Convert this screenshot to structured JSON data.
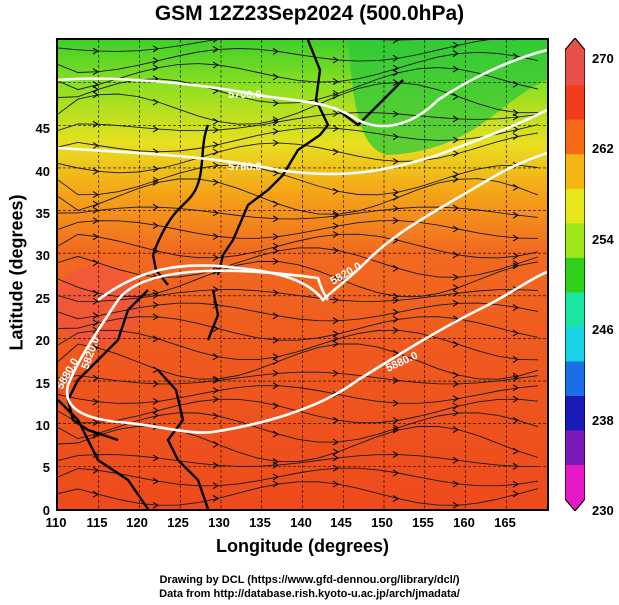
{
  "title": "GSM 12Z23Sep2024 (500.0hPa)",
  "xlabel": "Longitude (degrees)",
  "ylabel": "Latitude  (degrees)",
  "x_ticks": [
    "110",
    "115",
    "120",
    "125",
    "130",
    "135",
    "140",
    "145",
    "150",
    "155",
    "160",
    "165"
  ],
  "y_ticks": [
    "0",
    "5",
    "10",
    "15",
    "20",
    "25",
    "30",
    "35",
    "40",
    "45"
  ],
  "colorbar": {
    "ticks": [
      "230",
      "238",
      "246",
      "254",
      "262",
      "270"
    ],
    "range": [
      230,
      270
    ],
    "colors": [
      "#e619c8",
      "#7a1ab8",
      "#1a1ab8",
      "#1a6ee6",
      "#1ad2e6",
      "#1ae6a0",
      "#30d01a",
      "#9ee61a",
      "#e6e61a",
      "#f5b414",
      "#f56a14",
      "#f03c1a",
      "#e8504a"
    ]
  },
  "contour_labels": [
    "5700.0",
    "5760.0",
    "5820.0",
    "5880.0",
    "5880.0",
    "5820.0"
  ],
  "credits": {
    "line1": "Drawing by DCL (https://www.gfd-dennou.org/library/dcl/)",
    "line2": "Data from http://database.rish.kyoto-u.ac.jp/arch/jmadata/"
  }
}
